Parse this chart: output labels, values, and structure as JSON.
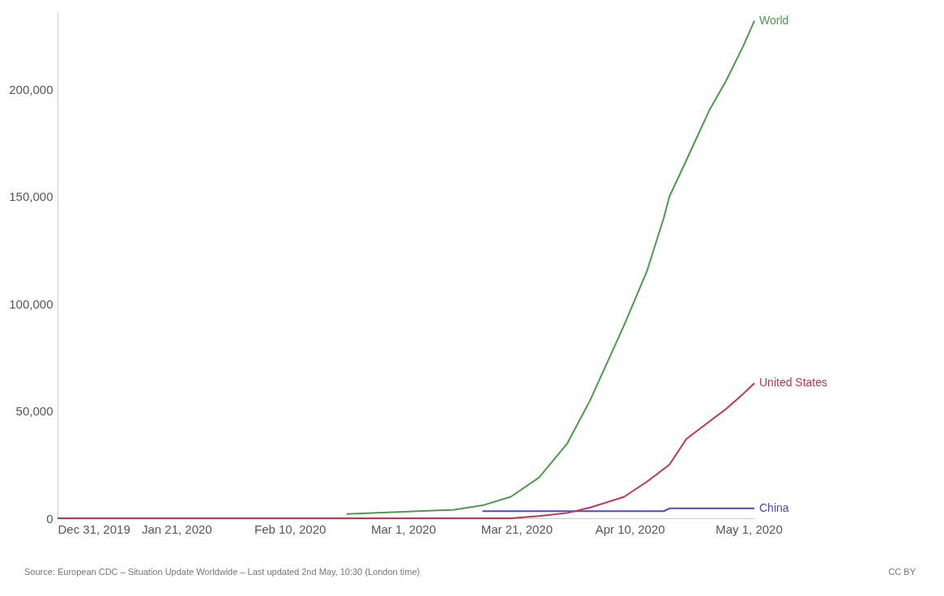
{
  "chart_data": {
    "type": "line",
    "series": [
      {
        "name": "World",
        "color": "#4c9a4c",
        "x": [
          "2020-02-20",
          "2020-03-01",
          "2020-03-10",
          "2020-03-15",
          "2020-03-20",
          "2020-03-25",
          "2020-03-30",
          "2020-04-03",
          "2020-04-09",
          "2020-04-13",
          "2020-04-16",
          "2020-04-17",
          "2020-04-20",
          "2020-04-24",
          "2020-04-27",
          "2020-04-30",
          "2020-05-02"
        ],
        "values": [
          2000,
          3000,
          4000,
          6000,
          10000,
          19000,
          35000,
          55000,
          90000,
          115000,
          140000,
          150000,
          167000,
          190000,
          204000,
          220000,
          232000
        ]
      },
      {
        "name": "United States",
        "color": "#c8334a",
        "x": [
          "2019-12-31",
          "2020-03-20",
          "2020-03-25",
          "2020-03-30",
          "2020-04-03",
          "2020-04-09",
          "2020-04-13",
          "2020-04-17",
          "2020-04-20",
          "2020-04-24",
          "2020-04-27",
          "2020-04-30",
          "2020-05-02"
        ],
        "values": [
          0,
          0,
          1000,
          2500,
          5000,
          10000,
          17000,
          25000,
          37000,
          45000,
          51000,
          58000,
          63000
        ]
      },
      {
        "name": "China",
        "color": "#4a4ac8",
        "x": [
          "2020-03-15",
          "2020-04-16",
          "2020-04-17",
          "2020-05-02"
        ],
        "values": [
          3300,
          3300,
          4600,
          4600
        ]
      }
    ],
    "xlim": [
      "2019-12-31",
      "2020-05-02"
    ],
    "xticks": [
      {
        "value": "2019-12-31",
        "label": "Dec 31, 2019"
      },
      {
        "value": "2020-01-21",
        "label": "Jan 21, 2020"
      },
      {
        "value": "2020-02-10",
        "label": "Feb 10, 2020"
      },
      {
        "value": "2020-03-01",
        "label": "Mar 1, 2020"
      },
      {
        "value": "2020-03-21",
        "label": "Mar 21, 2020"
      },
      {
        "value": "2020-04-10",
        "label": "Apr 10, 2020"
      },
      {
        "value": "2020-05-01",
        "label": "May 1, 2020"
      }
    ],
    "ylim": [
      0,
      236000
    ],
    "yticks": [
      0,
      {
        "value": 50000,
        "label": "50,000"
      },
      {
        "value": 100000,
        "label": "100,000"
      },
      {
        "value": 150000,
        "label": "150,000"
      },
      {
        "value": 200000,
        "label": "200,000"
      }
    ],
    "annotations": [
      "Source: European CDC – Situation Update Worldwide – Last updated 2nd May, 10:30 (London time)",
      "CC BY"
    ]
  }
}
